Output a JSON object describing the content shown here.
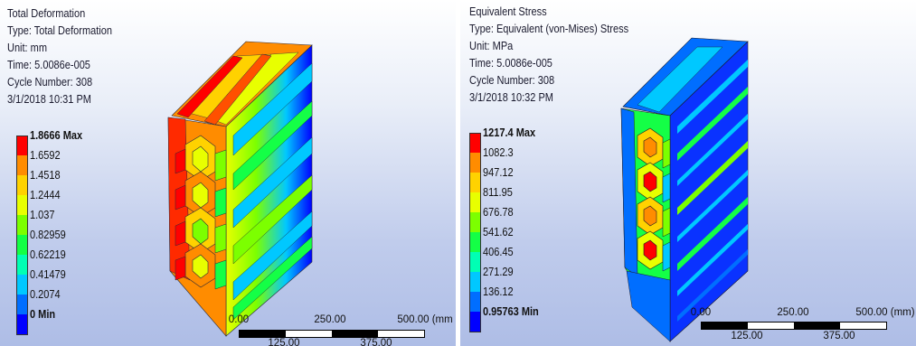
{
  "panels": [
    {
      "info": [
        "Total Deformation",
        "Type: Total Deformation",
        "Unit: mm",
        "Time: 5.0086e-005",
        "Cycle Number: 308",
        "3/1/2018 10:31 PM"
      ],
      "legend": [
        {
          "label": "1.8666 Max",
          "color": "#ff0000"
        },
        {
          "label": "1.6592",
          "color": "#ff8c00"
        },
        {
          "label": "1.4518",
          "color": "#ffd200"
        },
        {
          "label": "1.2444",
          "color": "#e8ff00"
        },
        {
          "label": "1.037",
          "color": "#7cff00"
        },
        {
          "label": "0.82959",
          "color": "#14ff46"
        },
        {
          "label": "0.62219",
          "color": "#00ffb4"
        },
        {
          "label": "0.41479",
          "color": "#00c8ff"
        },
        {
          "label": "0.2074",
          "color": "#006eff"
        },
        {
          "label": "0 Min",
          "color": "#0000ff"
        }
      ],
      "scale": {
        "top_labels": [
          "0.00",
          "250.00",
          "500.00 (mm"
        ],
        "bottom_labels": [
          "125.00",
          "375.00"
        ]
      }
    },
    {
      "info": [
        "Equivalent Stress",
        "Type: Equivalent (von-Mises) Stress",
        "Unit: MPa",
        "Time: 5.0086e-005",
        "Cycle Number: 308",
        "3/1/2018 10:32 PM"
      ],
      "legend": [
        {
          "label": "1217.4 Max",
          "color": "#ff0000"
        },
        {
          "label": "1082.3",
          "color": "#ff8c00"
        },
        {
          "label": "947.12",
          "color": "#ffd200"
        },
        {
          "label": "811.95",
          "color": "#e8ff00"
        },
        {
          "label": "676.78",
          "color": "#7cff00"
        },
        {
          "label": "541.62",
          "color": "#14ff46"
        },
        {
          "label": "406.45",
          "color": "#00ffb4"
        },
        {
          "label": "271.29",
          "color": "#00c8ff"
        },
        {
          "label": "136.12",
          "color": "#006eff"
        },
        {
          "label": "0.95763 Min",
          "color": "#0000ff"
        }
      ],
      "scale": {
        "top_labels": [
          "0.00",
          "250.00",
          "500.00 (mm)"
        ],
        "bottom_labels": [
          "125.00",
          "375.00"
        ]
      }
    }
  ]
}
